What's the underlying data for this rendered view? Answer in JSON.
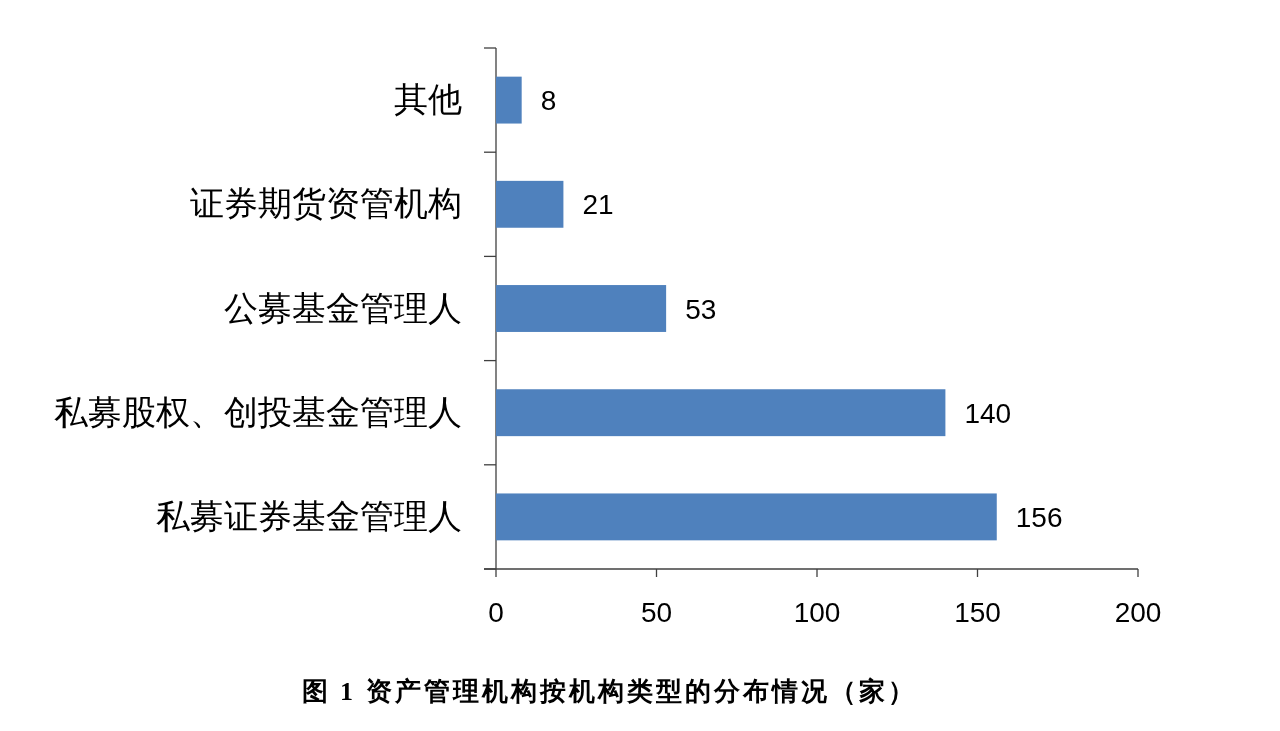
{
  "chart_data": {
    "type": "bar",
    "orientation": "horizontal",
    "title": "图 1 资产管理机构按机构类型的分布情况（家）",
    "categories": [
      "其他",
      "证券期货资管机构",
      "公募基金管理人",
      "私募股权、创投基金管理人",
      "私募证券基金管理人"
    ],
    "values": [
      8,
      21,
      53,
      140,
      156
    ],
    "color": "#4f81bd",
    "data_labels": true,
    "xlim": [
      0,
      200
    ],
    "xticks": [
      0,
      50,
      100,
      150,
      200
    ],
    "grid": false
  }
}
